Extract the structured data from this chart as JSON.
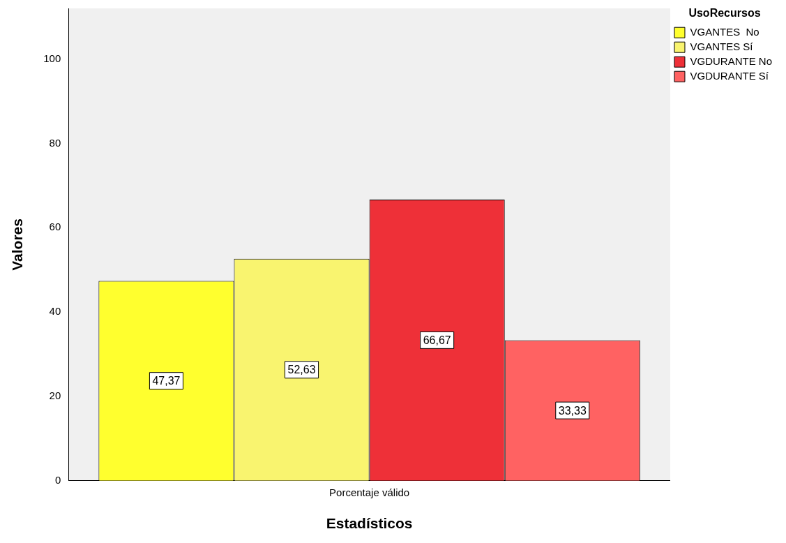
{
  "chart_data": {
    "type": "bar",
    "xlabel": "Estadísticos",
    "ylabel": "Valores",
    "legend_title": "UsoRecursos",
    "categories": [
      "Porcentaje válido"
    ],
    "series": [
      {
        "name": "VGANTES  No",
        "color": "#ffff2e",
        "values": [
          47.37
        ],
        "value_labels": [
          "47,37"
        ]
      },
      {
        "name": "VGANTES Sí",
        "color": "#f9f46f",
        "values": [
          52.63
        ],
        "value_labels": [
          "52,63"
        ]
      },
      {
        "name": "VGDURANTE No",
        "color": "#ee3038",
        "values": [
          66.67
        ],
        "value_labels": [
          "66,67"
        ]
      },
      {
        "name": "VGDURANTE Sí",
        "color": "#ff6262",
        "values": [
          33.33
        ],
        "value_labels": [
          "33,33"
        ]
      }
    ],
    "ylim": [
      0,
      112
    ],
    "yticks": [
      0,
      20,
      40,
      60,
      80,
      100
    ],
    "grid": false,
    "legend": "top right"
  }
}
